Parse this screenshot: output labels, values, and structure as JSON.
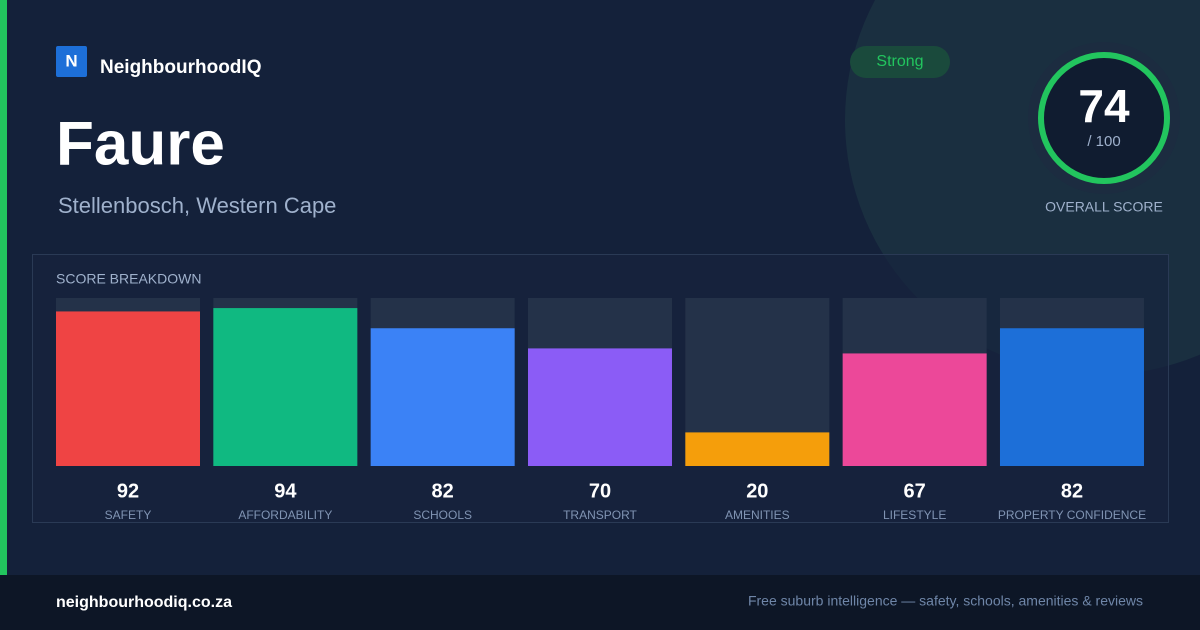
{
  "brand": {
    "logo": "N",
    "name": "NeighbourhoodIQ"
  },
  "header": {
    "title": "Faure",
    "subtitle": "Stellenbosch, Western Cape",
    "badge": "Strong"
  },
  "overall": {
    "score": 74,
    "out_of": "/ 100",
    "label": "OVERALL SCORE"
  },
  "chart_data": {
    "type": "bar",
    "title": "SCORE BREAKDOWN",
    "categories": [
      "SAFETY",
      "AFFORDABILITY",
      "SCHOOLS",
      "TRANSPORT",
      "AMENITIES",
      "LIFESTYLE",
      "PROPERTY CONFIDENCE"
    ],
    "values": [
      92,
      94,
      82,
      70,
      20,
      67,
      82
    ],
    "colors": [
      "#ef4444",
      "#10b981",
      "#3b82f6",
      "#8b5cf6",
      "#f59e0b",
      "#ec4899",
      "#1d6fd8"
    ],
    "ylim": [
      0,
      100
    ]
  },
  "footer": {
    "site": "neighbourhoodiq.co.za",
    "tagline": "Free suburb intelligence — safety, schools, amenities & reviews"
  }
}
